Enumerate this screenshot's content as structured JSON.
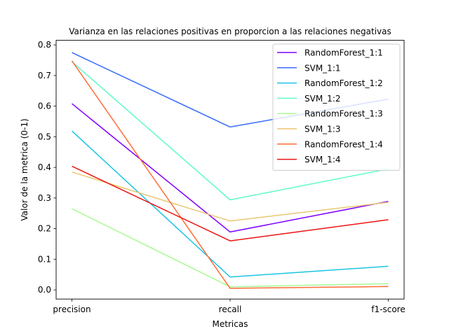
{
  "chart_data": {
    "type": "line",
    "title": "Varianza en las relaciones positivas en proporcion a las relaciones negativas",
    "xlabel": "Metricas",
    "ylabel": "Valor de la metrica (0-1)",
    "categories": [
      "precision",
      "recall",
      "f1-score"
    ],
    "ylim": [
      -0.03,
      0.815
    ],
    "yticks": [
      0.0,
      0.1,
      0.2,
      0.3,
      0.4,
      0.5,
      0.6,
      0.7,
      0.8
    ],
    "ytick_labels": [
      "0.0",
      "0.1",
      "0.2",
      "0.3",
      "0.4",
      "0.5",
      "0.6",
      "0.7",
      "0.8"
    ],
    "grid": false,
    "legend_position": "top-right",
    "series": [
      {
        "name": "RandomForest_1:1",
        "color": "#7f00ff",
        "values": [
          0.608,
          0.189,
          0.289
        ]
      },
      {
        "name": "SVM_1:1",
        "color": "#386df9",
        "values": [
          0.775,
          0.532,
          0.623
        ]
      },
      {
        "name": "RandomForest_1:2",
        "color": "#1cc5e4",
        "values": [
          0.519,
          0.042,
          0.077
        ]
      },
      {
        "name": "SVM_1:2",
        "color": "#5efbc8",
        "values": [
          0.745,
          0.294,
          0.395
        ]
      },
      {
        "name": "RandomForest_1:3",
        "color": "#a6fb95",
        "values": [
          0.265,
          0.01,
          0.02
        ]
      },
      {
        "name": "SVM_1:3",
        "color": "#eac771",
        "values": [
          0.385,
          0.225,
          0.286
        ]
      },
      {
        "name": "RandomForest_1:4",
        "color": "#ff6d38",
        "values": [
          0.748,
          0.005,
          0.011
        ]
      },
      {
        "name": "SVM_1:4",
        "color": "#ec1414",
        "values": [
          0.404,
          0.16,
          0.229
        ]
      }
    ]
  }
}
